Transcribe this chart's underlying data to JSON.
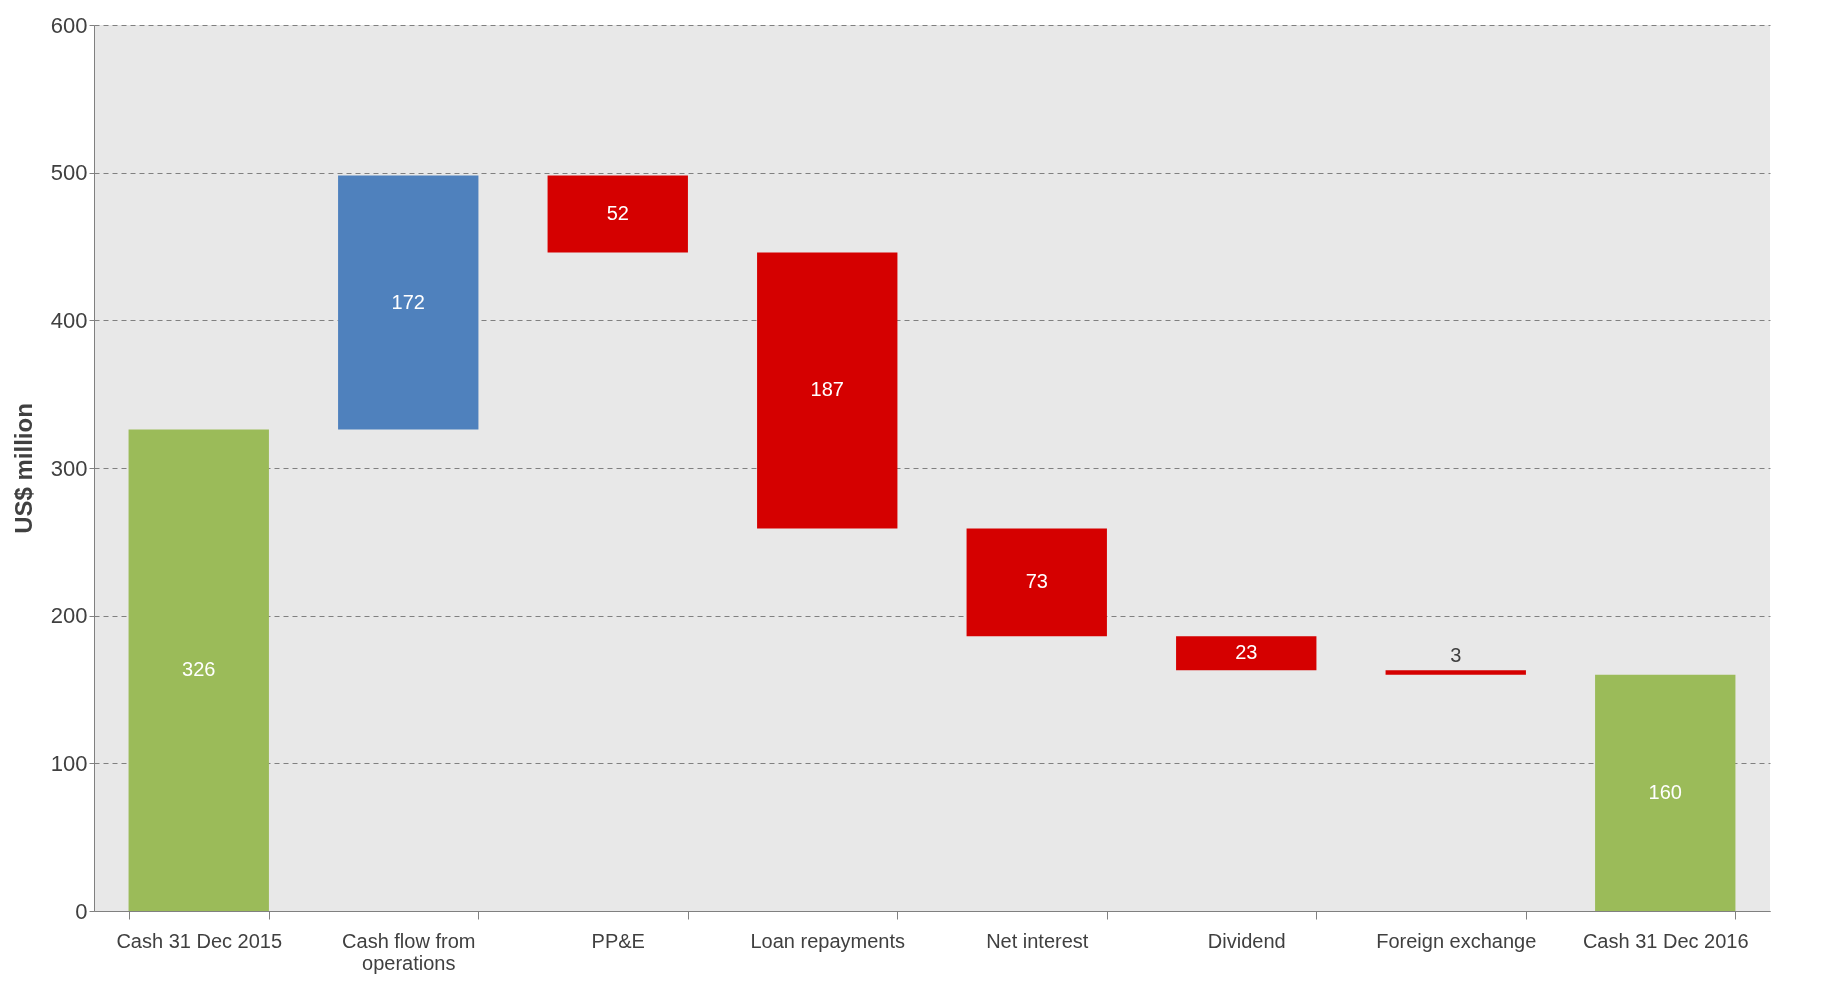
{
  "chart_data": {
    "type": "bar",
    "ylabel": "US$ million",
    "categories": [
      "Cash 31 Dec 2015",
      "Cash flow from operations",
      "PP&E",
      "Loan repayments",
      "Net interest",
      "Dividend",
      "Foreign exchange",
      "Cash 31 Dec 2016"
    ],
    "values": [
      326,
      172,
      -52,
      -187,
      -73,
      -23,
      -3,
      160
    ],
    "base": [
      0,
      326,
      498,
      446,
      259,
      186,
      163,
      0
    ],
    "colors": [
      "#9bbb59",
      "#4f81bd",
      "#d50000",
      "#d50000",
      "#d50000",
      "#d50000",
      "#d50000",
      "#9bbb59"
    ],
    "value_labels": [
      "326",
      "172",
      "52",
      "187",
      "73",
      "23",
      "3",
      "160"
    ],
    "ylim": [
      0,
      600
    ],
    "yticks": [
      0,
      100,
      200,
      300,
      400,
      500,
      600
    ],
    "grid": "y"
  }
}
